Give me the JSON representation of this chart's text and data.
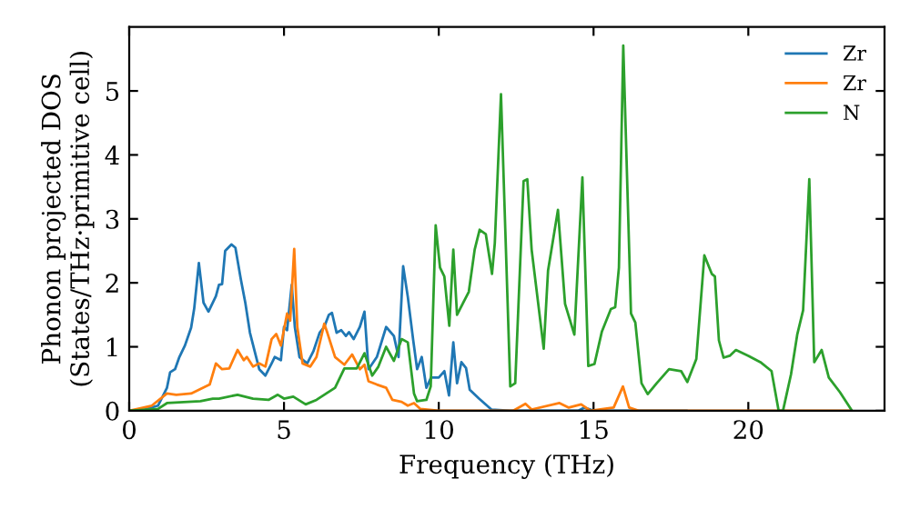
{
  "chart_data": {
    "type": "line",
    "xlabel": "Frequency (THz)",
    "ylabel": "Phonon projected DOS\n(States/THz·primitive cell)",
    "xlim": [
      0,
      24.4
    ],
    "ylim": [
      0,
      6
    ],
    "xticks": [
      0,
      5,
      10,
      15,
      20
    ],
    "yticks": [
      0,
      1,
      2,
      3,
      4,
      5
    ],
    "grid": false,
    "legend": "top right",
    "line_style": "solid",
    "marker": "none",
    "series": [
      {
        "name": "Zr",
        "color": "#1f77b4",
        "x": [
          0,
          0.5,
          0.93,
          1.22,
          1.32,
          1.48,
          1.62,
          1.8,
          2.0,
          2.1,
          2.25,
          2.4,
          2.56,
          2.8,
          2.9,
          3.0,
          3.1,
          3.3,
          3.43,
          3.6,
          3.75,
          3.9,
          4.2,
          4.4,
          4.6,
          4.7,
          4.9,
          5.0,
          5.1,
          5.25,
          5.35,
          5.5,
          5.75,
          5.95,
          6.15,
          6.3,
          6.45,
          6.55,
          6.7,
          6.85,
          7.0,
          7.1,
          7.25,
          7.45,
          7.6,
          7.73,
          8.0,
          8.3,
          8.55,
          8.7,
          8.85,
          9.0,
          9.17,
          9.3,
          9.45,
          9.6,
          9.75,
          10.0,
          10.18,
          10.33,
          10.47,
          10.59,
          10.73,
          10.88,
          11.0,
          11.3,
          11.7,
          12.3,
          14.5,
          14.7,
          15.0,
          18.0
        ],
        "values": [
          0,
          0.02,
          0.08,
          0.36,
          0.6,
          0.65,
          0.84,
          1.02,
          1.3,
          1.6,
          2.31,
          1.69,
          1.55,
          1.79,
          1.97,
          1.98,
          2.5,
          2.6,
          2.55,
          2.07,
          1.69,
          1.22,
          0.65,
          0.55,
          0.74,
          0.84,
          0.79,
          1.31,
          1.26,
          1.97,
          1.31,
          0.84,
          0.74,
          0.93,
          1.22,
          1.31,
          1.5,
          1.53,
          1.22,
          1.26,
          1.17,
          1.23,
          1.12,
          1.31,
          1.55,
          0.65,
          0.84,
          1.31,
          1.17,
          0.84,
          2.26,
          1.78,
          1.12,
          0.65,
          0.84,
          0.36,
          0.52,
          0.52,
          0.62,
          0.24,
          1.07,
          0.43,
          0.76,
          0.67,
          0.33,
          0.19,
          0.02,
          0,
          0,
          0.05,
          0,
          0
        ]
      },
      {
        "name": "Zr",
        "color": "#ff7f0e",
        "x": [
          0,
          0.73,
          1.22,
          1.52,
          2.0,
          2.3,
          2.6,
          2.8,
          3.0,
          3.23,
          3.35,
          3.5,
          3.7,
          3.8,
          4.0,
          4.2,
          4.4,
          4.6,
          4.75,
          4.9,
          5.1,
          5.2,
          5.33,
          5.43,
          5.6,
          5.85,
          6.05,
          6.3,
          6.4,
          6.65,
          6.95,
          7.2,
          7.45,
          7.6,
          7.73,
          8.0,
          8.3,
          8.5,
          8.8,
          9.0,
          9.2,
          9.4,
          10.0,
          12.4,
          12.8,
          13.0,
          13.9,
          14.2,
          14.6,
          14.9,
          15.65,
          15.95,
          16.15,
          16.45,
          21.0,
          23.3
        ],
        "values": [
          0,
          0.08,
          0.27,
          0.25,
          0.27,
          0.34,
          0.41,
          0.74,
          0.65,
          0.66,
          0.79,
          0.95,
          0.79,
          0.84,
          0.69,
          0.74,
          0.69,
          1.12,
          1.2,
          1.02,
          1.52,
          1.41,
          2.53,
          1.31,
          0.74,
          0.69,
          0.84,
          1.36,
          1.22,
          0.84,
          0.72,
          0.88,
          0.65,
          0.72,
          0.46,
          0.41,
          0.36,
          0.17,
          0.14,
          0.08,
          0.12,
          0.03,
          0,
          0,
          0.11,
          0.02,
          0.12,
          0.05,
          0.1,
          0,
          0.05,
          0.38,
          0.05,
          0,
          0,
          0
        ]
      },
      {
        "name": "N",
        "color": "#2ca02c",
        "x": [
          0,
          0.93,
          1.22,
          2.3,
          2.7,
          2.9,
          3.5,
          4.0,
          4.5,
          4.8,
          5.0,
          5.3,
          5.7,
          6.05,
          6.65,
          6.95,
          7.35,
          7.6,
          7.85,
          8.05,
          8.3,
          8.55,
          8.8,
          9.0,
          9.2,
          9.3,
          9.6,
          9.74,
          9.9,
          10.04,
          10.18,
          10.34,
          10.47,
          10.59,
          10.77,
          10.97,
          11.16,
          11.32,
          11.52,
          11.72,
          11.81,
          12.01,
          12.31,
          12.47,
          12.74,
          12.86,
          13.0,
          13.39,
          13.53,
          13.85,
          14.08,
          14.38,
          14.64,
          14.83,
          15.03,
          15.27,
          15.56,
          15.7,
          15.82,
          15.96,
          16.21,
          16.35,
          16.55,
          16.75,
          17.04,
          17.44,
          17.83,
          18.03,
          18.32,
          18.58,
          18.82,
          18.92,
          19.05,
          19.2,
          19.4,
          19.6,
          20.0,
          20.39,
          20.75,
          20.98,
          21.12,
          21.38,
          21.58,
          21.77,
          21.97,
          22.13,
          22.37,
          22.6,
          22.96,
          23.35
        ],
        "values": [
          0,
          0.03,
          0.12,
          0.15,
          0.19,
          0.19,
          0.25,
          0.19,
          0.17,
          0.25,
          0.19,
          0.22,
          0.1,
          0.17,
          0.36,
          0.66,
          0.66,
          0.9,
          0.55,
          0.69,
          1.0,
          0.78,
          1.12,
          1.07,
          0.27,
          0.15,
          0.17,
          0.38,
          2.9,
          2.24,
          2.1,
          1.33,
          2.52,
          1.5,
          1.67,
          1.86,
          2.52,
          2.83,
          2.76,
          2.14,
          2.62,
          4.95,
          0.38,
          0.43,
          3.59,
          3.62,
          2.52,
          0.97,
          2.19,
          3.14,
          1.67,
          1.19,
          3.65,
          0.7,
          0.73,
          1.24,
          1.59,
          1.62,
          2.24,
          5.71,
          1.52,
          1.38,
          0.43,
          0.26,
          0.43,
          0.65,
          0.62,
          0.45,
          0.81,
          2.43,
          2.14,
          2.1,
          1.1,
          0.83,
          0.86,
          0.95,
          0.86,
          0.76,
          0.62,
          0,
          0,
          0.57,
          1.19,
          1.57,
          3.62,
          0.76,
          0.95,
          0.52,
          0.29,
          0
        ]
      }
    ]
  }
}
